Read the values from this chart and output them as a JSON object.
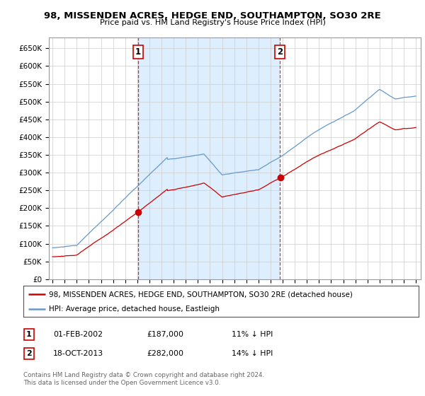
{
  "title": "98, MISSENDEN ACRES, HEDGE END, SOUTHAMPTON, SO30 2RE",
  "subtitle": "Price paid vs. HM Land Registry's House Price Index (HPI)",
  "ylabel_ticks": [
    "£0",
    "£50K",
    "£100K",
    "£150K",
    "£200K",
    "£250K",
    "£300K",
    "£350K",
    "£400K",
    "£450K",
    "£500K",
    "£550K",
    "£600K",
    "£650K"
  ],
  "ytick_values": [
    0,
    50000,
    100000,
    150000,
    200000,
    250000,
    300000,
    350000,
    400000,
    450000,
    500000,
    550000,
    600000,
    650000
  ],
  "ylim": [
    0,
    680000
  ],
  "xlim_start": 1994.7,
  "xlim_end": 2025.4,
  "sale1": {
    "date_num": 2002.08,
    "price": 187000,
    "label": "1"
  },
  "sale2": {
    "date_num": 2013.79,
    "price": 282000,
    "label": "2"
  },
  "legend_entries": [
    "98, MISSENDEN ACRES, HEDGE END, SOUTHAMPTON, SO30 2RE (detached house)",
    "HPI: Average price, detached house, Eastleigh"
  ],
  "table_rows": [
    {
      "num": "1",
      "date": "01-FEB-2002",
      "price": "£187,000",
      "pct": "11% ↓ HPI"
    },
    {
      "num": "2",
      "date": "18-OCT-2013",
      "price": "£282,000",
      "pct": "14% ↓ HPI"
    }
  ],
  "footer": "Contains HM Land Registry data © Crown copyright and database right 2024.\nThis data is licensed under the Open Government Licence v3.0.",
  "red_color": "#cc0000",
  "blue_color": "#6699cc",
  "shade_color": "#ddeeff",
  "grid_color": "#cccccc",
  "bg_color": "#ffffff"
}
